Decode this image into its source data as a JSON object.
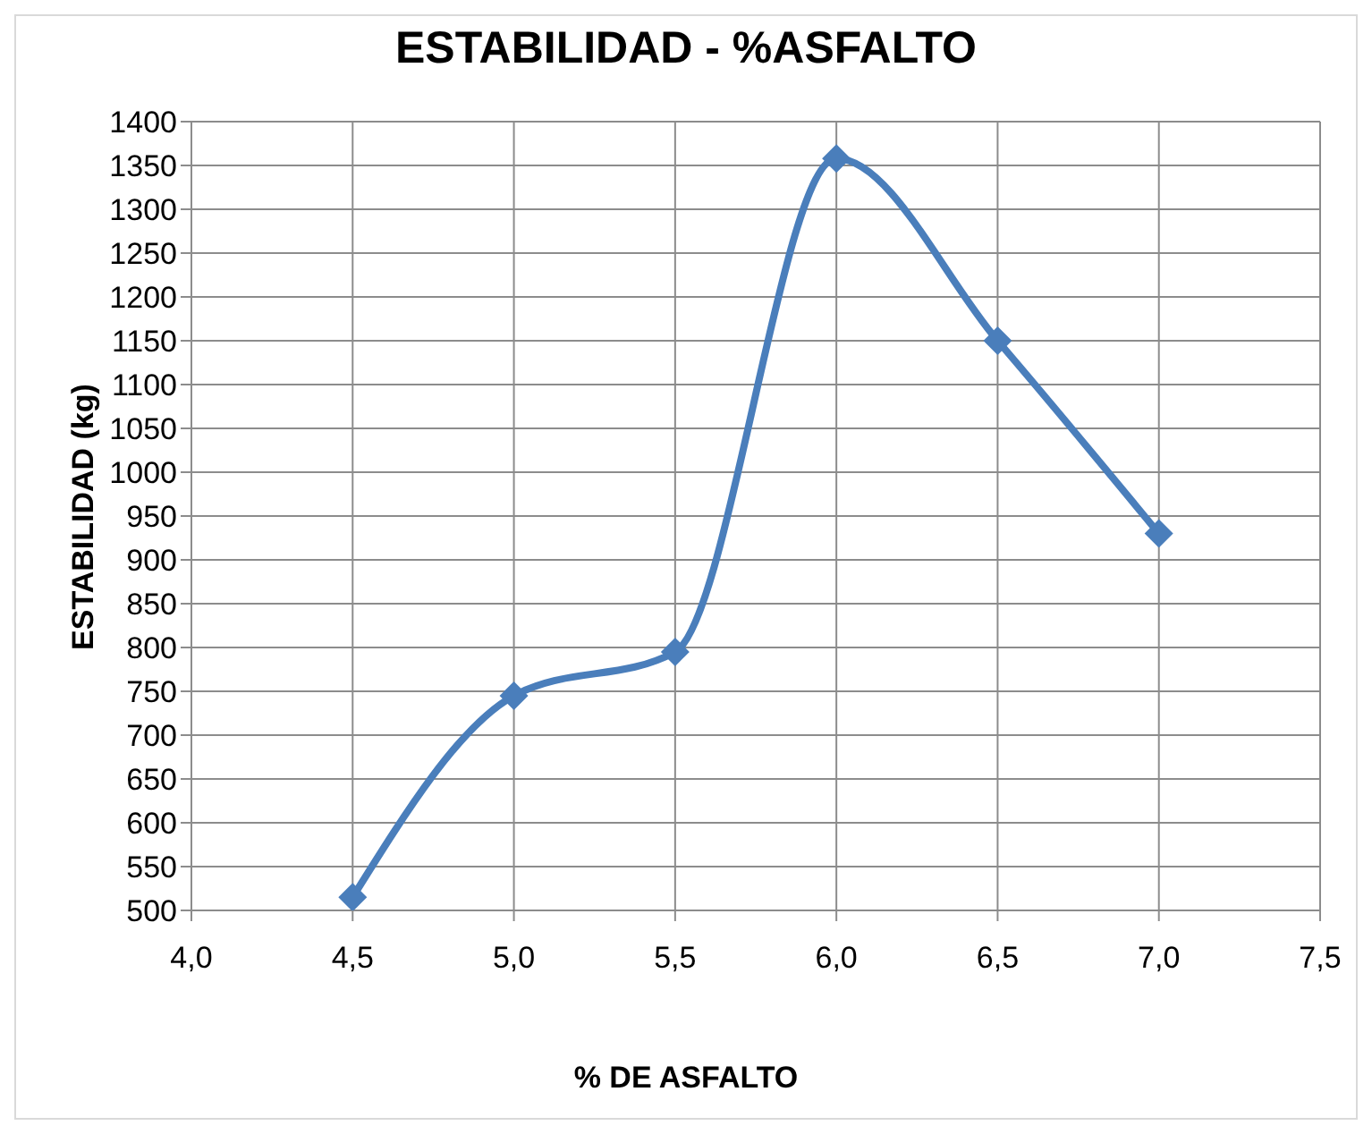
{
  "chart_data": {
    "type": "line",
    "title": "ESTABILIDAD - %ASFALTO",
    "xlabel": "% DE ASFALTO",
    "ylabel": "ESTABILIDAD (kg)",
    "x": [
      4.5,
      5.0,
      5.5,
      6.0,
      6.5,
      7.0
    ],
    "series": [
      {
        "color": "#4a7ebb",
        "values": [
          515,
          745,
          795,
          1358,
          1150,
          930
        ]
      }
    ],
    "xlim": [
      4,
      7.5
    ],
    "xticks": [
      {
        "value": 4,
        "label": "4,0"
      },
      {
        "value": 4.5,
        "label": "4,5"
      },
      {
        "value": 5,
        "label": "5,0"
      },
      {
        "value": 5.5,
        "label": "5,5"
      },
      {
        "value": 6,
        "label": "6,0"
      },
      {
        "value": 6.5,
        "label": "6,5"
      },
      {
        "value": 7,
        "label": "7,0"
      },
      {
        "value": 7.5,
        "label": "7,5"
      }
    ],
    "ylim": [
      500,
      1400
    ],
    "yticks": [
      500,
      550,
      600,
      650,
      700,
      750,
      800,
      850,
      900,
      950,
      1000,
      1050,
      1100,
      1150,
      1200,
      1250,
      1300,
      1350,
      1400
    ],
    "grid": true,
    "marker": "diamond",
    "line_style": "solid",
    "legend": false
  }
}
